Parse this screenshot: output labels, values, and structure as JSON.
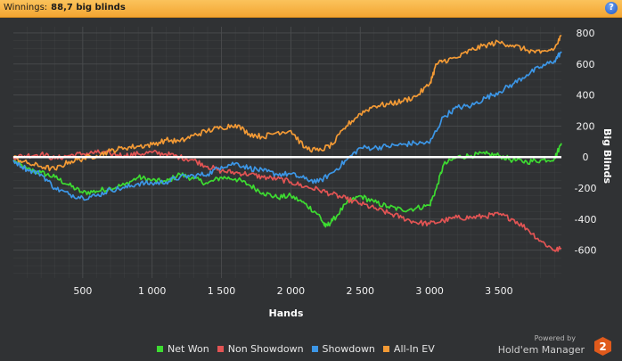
{
  "header": {
    "winnings_label": "Winnings:",
    "winnings_value": "88,7 big blinds",
    "help_label": "?"
  },
  "branding": {
    "powered_by": "Powered by",
    "product": "Hold'em Manager",
    "version_badge": "2"
  },
  "colors": {
    "background": "#303234",
    "grid": "#4a4c4e",
    "zero_line": "#ffffff",
    "net_won": "#3ddc31",
    "non_showdown": "#e35454",
    "showdown": "#3c96e6",
    "all_in_ev": "#f39a35"
  },
  "chart_data": {
    "type": "line",
    "xlabel": "Hands",
    "ylabel": "Big Blinds",
    "xlim": [
      0,
      3950
    ],
    "ylim": [
      -780,
      840
    ],
    "x_ticks": [
      500,
      1000,
      1500,
      2000,
      2500,
      3000,
      3500
    ],
    "x_tick_labels": [
      "500",
      "1 000",
      "1 500",
      "2 000",
      "2 500",
      "3 000",
      "3 500"
    ],
    "y_ticks": [
      800,
      600,
      400,
      200,
      0,
      -200,
      -400,
      -600
    ],
    "y_tick_labels": [
      "800",
      "600",
      "400",
      "200",
      "0",
      "-200",
      "-400",
      "-600"
    ],
    "grid": true,
    "legend_position": "bottom",
    "series": [
      {
        "name": "Net Won",
        "color": "#3ddc31",
        "points": [
          [
            0,
            -20
          ],
          [
            100,
            -80
          ],
          [
            200,
            -100
          ],
          [
            300,
            -130
          ],
          [
            400,
            -180
          ],
          [
            500,
            -230
          ],
          [
            600,
            -220
          ],
          [
            700,
            -200
          ],
          [
            800,
            -180
          ],
          [
            900,
            -130
          ],
          [
            1000,
            -150
          ],
          [
            1100,
            -160
          ],
          [
            1200,
            -110
          ],
          [
            1300,
            -140
          ],
          [
            1400,
            -170
          ],
          [
            1500,
            -130
          ],
          [
            1600,
            -140
          ],
          [
            1700,
            -180
          ],
          [
            1800,
            -230
          ],
          [
            1900,
            -260
          ],
          [
            2000,
            -250
          ],
          [
            2100,
            -300
          ],
          [
            2200,
            -370
          ],
          [
            2250,
            -450
          ],
          [
            2300,
            -410
          ],
          [
            2400,
            -300
          ],
          [
            2500,
            -250
          ],
          [
            2600,
            -290
          ],
          [
            2700,
            -320
          ],
          [
            2800,
            -340
          ],
          [
            2900,
            -330
          ],
          [
            3000,
            -310
          ],
          [
            3050,
            -200
          ],
          [
            3100,
            -50
          ],
          [
            3200,
            0
          ],
          [
            3300,
            10
          ],
          [
            3400,
            20
          ],
          [
            3500,
            10
          ],
          [
            3600,
            -20
          ],
          [
            3700,
            -30
          ],
          [
            3800,
            -20
          ],
          [
            3900,
            -10
          ],
          [
            3950,
            89
          ]
        ]
      },
      {
        "name": "Non Showdown",
        "color": "#e35454",
        "points": [
          [
            0,
            0
          ],
          [
            100,
            10
          ],
          [
            200,
            20
          ],
          [
            300,
            -10
          ],
          [
            400,
            10
          ],
          [
            500,
            20
          ],
          [
            600,
            30
          ],
          [
            700,
            20
          ],
          [
            800,
            10
          ],
          [
            900,
            20
          ],
          [
            1000,
            30
          ],
          [
            1100,
            20
          ],
          [
            1200,
            0
          ],
          [
            1300,
            -20
          ],
          [
            1400,
            -60
          ],
          [
            1500,
            -90
          ],
          [
            1600,
            -100
          ],
          [
            1700,
            -110
          ],
          [
            1800,
            -130
          ],
          [
            1900,
            -140
          ],
          [
            2000,
            -160
          ],
          [
            2100,
            -190
          ],
          [
            2200,
            -210
          ],
          [
            2300,
            -240
          ],
          [
            2400,
            -270
          ],
          [
            2500,
            -300
          ],
          [
            2600,
            -330
          ],
          [
            2700,
            -360
          ],
          [
            2800,
            -390
          ],
          [
            2900,
            -420
          ],
          [
            3000,
            -430
          ],
          [
            3100,
            -410
          ],
          [
            3200,
            -390
          ],
          [
            3300,
            -390
          ],
          [
            3400,
            -380
          ],
          [
            3500,
            -370
          ],
          [
            3600,
            -400
          ],
          [
            3700,
            -460
          ],
          [
            3800,
            -540
          ],
          [
            3900,
            -600
          ],
          [
            3950,
            -590
          ]
        ]
      },
      {
        "name": "Showdown",
        "color": "#3c96e6",
        "points": [
          [
            0,
            -20
          ],
          [
            100,
            -80
          ],
          [
            200,
            -110
          ],
          [
            300,
            -200
          ],
          [
            400,
            -240
          ],
          [
            500,
            -260
          ],
          [
            600,
            -250
          ],
          [
            700,
            -210
          ],
          [
            800,
            -200
          ],
          [
            900,
            -170
          ],
          [
            1000,
            -170
          ],
          [
            1100,
            -160
          ],
          [
            1200,
            -130
          ],
          [
            1300,
            -120
          ],
          [
            1400,
            -110
          ],
          [
            1500,
            -60
          ],
          [
            1600,
            -40
          ],
          [
            1700,
            -70
          ],
          [
            1800,
            -90
          ],
          [
            1900,
            -110
          ],
          [
            2000,
            -110
          ],
          [
            2100,
            -140
          ],
          [
            2200,
            -160
          ],
          [
            2300,
            -100
          ],
          [
            2400,
            -20
          ],
          [
            2500,
            60
          ],
          [
            2600,
            60
          ],
          [
            2700,
            70
          ],
          [
            2800,
            80
          ],
          [
            2900,
            90
          ],
          [
            3000,
            90
          ],
          [
            3100,
            260
          ],
          [
            3200,
            320
          ],
          [
            3300,
            330
          ],
          [
            3400,
            380
          ],
          [
            3500,
            420
          ],
          [
            3600,
            470
          ],
          [
            3700,
            530
          ],
          [
            3800,
            580
          ],
          [
            3900,
            620
          ],
          [
            3950,
            680
          ]
        ]
      },
      {
        "name": "All-In EV",
        "color": "#f39a35",
        "points": [
          [
            0,
            0
          ],
          [
            100,
            -40
          ],
          [
            200,
            -60
          ],
          [
            300,
            -80
          ],
          [
            400,
            -30
          ],
          [
            500,
            -10
          ],
          [
            600,
            10
          ],
          [
            700,
            40
          ],
          [
            800,
            60
          ],
          [
            900,
            70
          ],
          [
            1000,
            80
          ],
          [
            1100,
            110
          ],
          [
            1200,
            100
          ],
          [
            1300,
            140
          ],
          [
            1400,
            170
          ],
          [
            1500,
            190
          ],
          [
            1600,
            210
          ],
          [
            1700,
            150
          ],
          [
            1800,
            130
          ],
          [
            1900,
            160
          ],
          [
            2000,
            170
          ],
          [
            2100,
            60
          ],
          [
            2200,
            40
          ],
          [
            2300,
            80
          ],
          [
            2400,
            200
          ],
          [
            2500,
            280
          ],
          [
            2600,
            330
          ],
          [
            2700,
            340
          ],
          [
            2800,
            360
          ],
          [
            2900,
            390
          ],
          [
            3000,
            470
          ],
          [
            3050,
            600
          ],
          [
            3100,
            620
          ],
          [
            3200,
            640
          ],
          [
            3300,
            690
          ],
          [
            3400,
            720
          ],
          [
            3500,
            740
          ],
          [
            3600,
            720
          ],
          [
            3700,
            690
          ],
          [
            3800,
            670
          ],
          [
            3900,
            700
          ],
          [
            3950,
            780
          ]
        ]
      }
    ]
  }
}
